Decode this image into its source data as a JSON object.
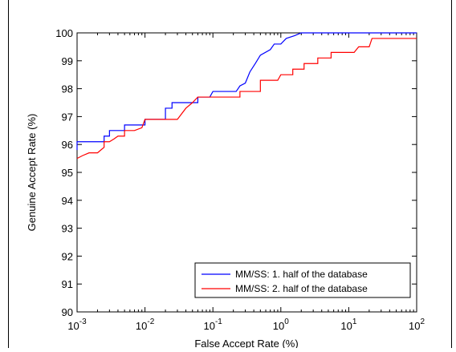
{
  "chart_data": {
    "type": "line",
    "title": "",
    "xlabel": "False Accept Rate (%)",
    "ylabel": "Genuine Accept Rate (%)",
    "xscale": "log",
    "xlim": [
      0.001,
      100
    ],
    "ylim": [
      90,
      100
    ],
    "xticks": [
      {
        "value": 0.001,
        "base": "10",
        "exp": "-3"
      },
      {
        "value": 0.01,
        "base": "10",
        "exp": "-2"
      },
      {
        "value": 0.1,
        "base": "10",
        "exp": "-1"
      },
      {
        "value": 1,
        "base": "10",
        "exp": "0"
      },
      {
        "value": 10,
        "base": "10",
        "exp": "1"
      },
      {
        "value": 100,
        "base": "10",
        "exp": "2"
      }
    ],
    "yticks": [
      "90",
      "91",
      "92",
      "93",
      "94",
      "95",
      "96",
      "97",
      "98",
      "99",
      "100"
    ],
    "grid": false,
    "legend_position": "bottom-right",
    "series": [
      {
        "name": "MM/SS: 1. half of the database",
        "color": "#0000ff",
        "points": [
          [
            0.001,
            95.8
          ],
          [
            0.001,
            96.1
          ],
          [
            0.0025,
            96.1
          ],
          [
            0.0025,
            96.3
          ],
          [
            0.003,
            96.3
          ],
          [
            0.003,
            96.5
          ],
          [
            0.005,
            96.5
          ],
          [
            0.005,
            96.7
          ],
          [
            0.01,
            96.7
          ],
          [
            0.01,
            96.9
          ],
          [
            0.02,
            96.9
          ],
          [
            0.02,
            97.3
          ],
          [
            0.025,
            97.3
          ],
          [
            0.025,
            97.5
          ],
          [
            0.04,
            97.5
          ],
          [
            0.045,
            97.5
          ],
          [
            0.06,
            97.5
          ],
          [
            0.06,
            97.7
          ],
          [
            0.09,
            97.7
          ],
          [
            0.1,
            97.9
          ],
          [
            0.22,
            97.9
          ],
          [
            0.25,
            98.1
          ],
          [
            0.3,
            98.2
          ],
          [
            0.35,
            98.6
          ],
          [
            0.42,
            98.9
          ],
          [
            0.5,
            99.2
          ],
          [
            0.7,
            99.4
          ],
          [
            0.8,
            99.6
          ],
          [
            1.0,
            99.6
          ],
          [
            1.2,
            99.8
          ],
          [
            1.6,
            99.9
          ],
          [
            2.0,
            100
          ],
          [
            100,
            100
          ]
        ]
      },
      {
        "name": "MM/SS: 2. half of the database",
        "color": "#ff0000",
        "points": [
          [
            0.001,
            95.5
          ],
          [
            0.0012,
            95.6
          ],
          [
            0.0015,
            95.7
          ],
          [
            0.002,
            95.7
          ],
          [
            0.0025,
            95.9
          ],
          [
            0.0025,
            96.1
          ],
          [
            0.003,
            96.1
          ],
          [
            0.0035,
            96.2
          ],
          [
            0.004,
            96.3
          ],
          [
            0.005,
            96.3
          ],
          [
            0.005,
            96.5
          ],
          [
            0.007,
            96.5
          ],
          [
            0.009,
            96.6
          ],
          [
            0.01,
            96.9
          ],
          [
            0.03,
            96.9
          ],
          [
            0.04,
            97.3
          ],
          [
            0.05,
            97.5
          ],
          [
            0.06,
            97.7
          ],
          [
            0.1,
            97.7
          ],
          [
            0.25,
            97.7
          ],
          [
            0.25,
            97.9
          ],
          [
            0.5,
            97.9
          ],
          [
            0.5,
            98.3
          ],
          [
            0.9,
            98.3
          ],
          [
            1.0,
            98.5
          ],
          [
            1.5,
            98.5
          ],
          [
            1.5,
            98.7
          ],
          [
            2.2,
            98.7
          ],
          [
            2.2,
            98.9
          ],
          [
            3.5,
            98.9
          ],
          [
            3.5,
            99.1
          ],
          [
            5.5,
            99.1
          ],
          [
            5.5,
            99.3
          ],
          [
            12,
            99.3
          ],
          [
            14,
            99.5
          ],
          [
            20,
            99.5
          ],
          [
            22,
            99.8
          ],
          [
            100,
            99.8
          ]
        ]
      }
    ]
  }
}
